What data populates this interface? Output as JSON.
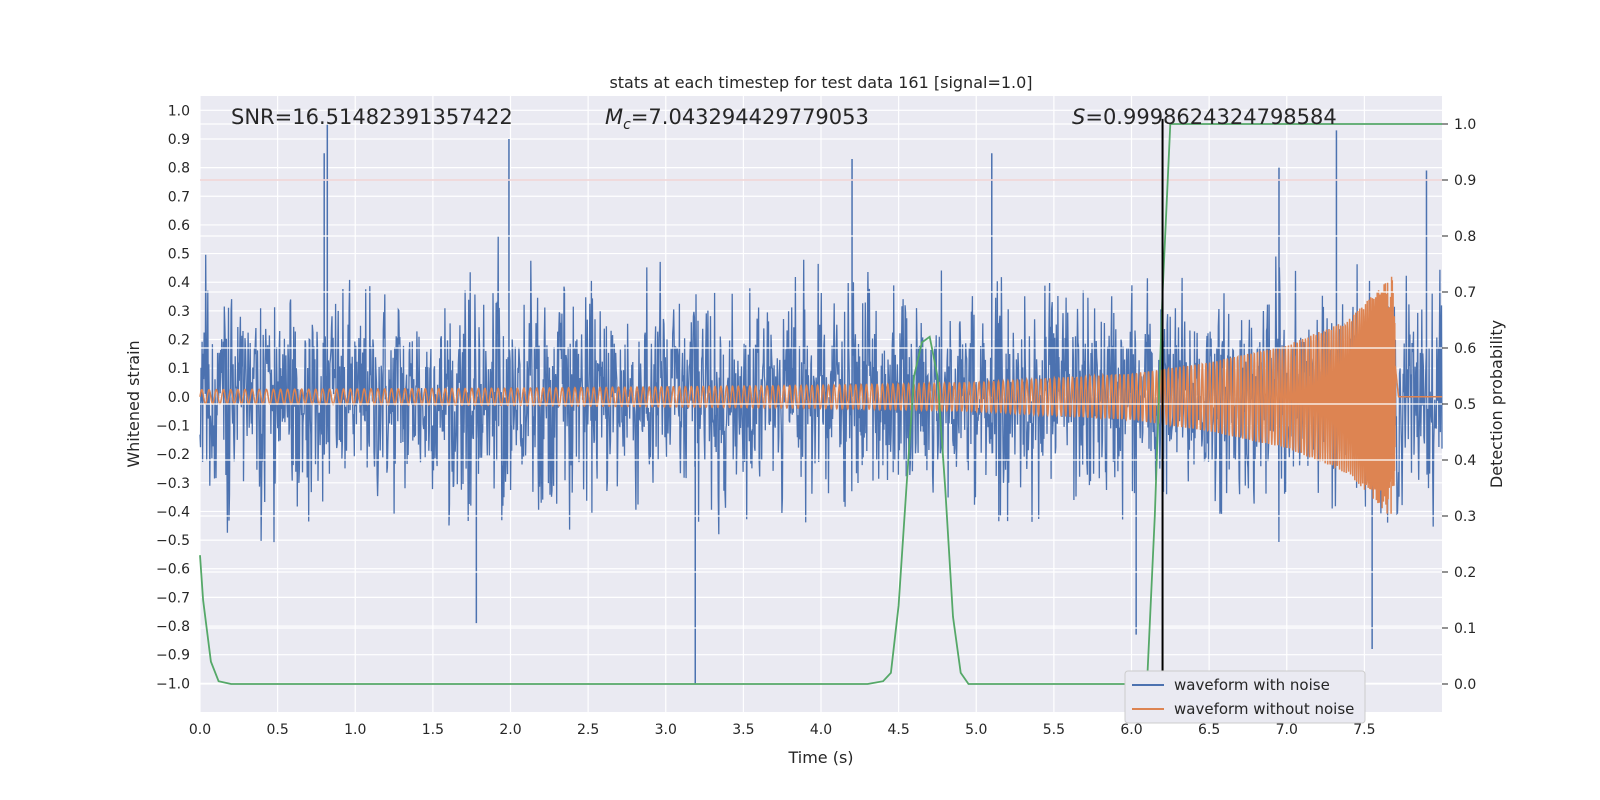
{
  "chart_data": {
    "type": "line",
    "title": "stats at each timestep for test data 161 [signal=1.0]",
    "xlabel": "Time (s)",
    "ylabel": "Whitened strain",
    "y2label": "Detection probability",
    "xlim": [
      0.0,
      8.0
    ],
    "ylim": [
      -1.1,
      1.05
    ],
    "y2lim": [
      -0.05,
      1.05
    ],
    "x_ticks": [
      0.0,
      0.5,
      1.0,
      1.5,
      2.0,
      2.5,
      3.0,
      3.5,
      4.0,
      4.5,
      5.0,
      5.5,
      6.0,
      6.5,
      7.0,
      7.5
    ],
    "x_tick_labels": [
      "0.0",
      "0.5",
      "1.0",
      "1.5",
      "2.0",
      "2.5",
      "3.0",
      "3.5",
      "4.0",
      "4.5",
      "5.0",
      "5.5",
      "6.0",
      "6.5",
      "7.0",
      "7.5"
    ],
    "y_ticks": [
      -1.0,
      -0.9,
      -0.8,
      -0.7,
      -0.6,
      -0.5,
      -0.4,
      -0.3,
      -0.2,
      -0.1,
      0.0,
      0.1,
      0.2,
      0.3,
      0.4,
      0.5,
      0.6,
      0.7,
      0.8,
      0.9,
      1.0
    ],
    "y_tick_labels": [
      "−1.0",
      "−0.9",
      "−0.8",
      "−0.7",
      "−0.6",
      "−0.5",
      "−0.4",
      "−0.3",
      "−0.2",
      "−0.1",
      "0.0",
      "0.1",
      "0.2",
      "0.3",
      "0.4",
      "0.5",
      "0.6",
      "0.7",
      "0.8",
      "0.9",
      "1.0"
    ],
    "y2_ticks": [
      0.0,
      0.1,
      0.2,
      0.3,
      0.4,
      0.5,
      0.6,
      0.7,
      0.8,
      0.9,
      1.0
    ],
    "y2_tick_labels": [
      "0.0",
      "0.1",
      "0.2",
      "0.3",
      "0.4",
      "0.5",
      "0.6",
      "0.7",
      "0.8",
      "0.9",
      "1.0"
    ],
    "annotations": {
      "snr": "SNR=16.51482391357422",
      "mc_symbol": "M",
      "mc_sub": "c",
      "mc_value": "=7.043294429779053",
      "s_symbol": "S",
      "s_value": "=0.9998624324798584"
    },
    "threshold": {
      "axis": "y2",
      "value": 0.9,
      "color": "#c44e52"
    },
    "detection_time": {
      "x": 6.2,
      "color": "#000000"
    },
    "series": [
      {
        "name": "waveform with noise",
        "color": "#4c72b0",
        "axis": "y",
        "kind": "noise",
        "typical_amplitude": [
          -0.45,
          0.5
        ],
        "peaks": [
          {
            "x": 0.82,
            "y": 0.95
          },
          {
            "x": 0.8,
            "y": 0.85
          },
          {
            "x": 1.99,
            "y": 0.9
          },
          {
            "x": 3.19,
            "y": -1.0
          },
          {
            "x": 5.1,
            "y": 0.85
          },
          {
            "x": 7.32,
            "y": 0.93
          },
          {
            "x": 1.78,
            "y": -0.79
          },
          {
            "x": 6.03,
            "y": -0.83
          },
          {
            "x": 7.55,
            "y": -0.88
          },
          {
            "x": 4.2,
            "y": 0.83
          },
          {
            "x": 6.95,
            "y": 0.8
          },
          {
            "x": 7.9,
            "y": 0.79
          }
        ]
      },
      {
        "name": "waveform without noise",
        "color": "#dd8452",
        "axis": "y",
        "kind": "chirp",
        "envelope": [
          {
            "t": 0.0,
            "a": 0.025
          },
          {
            "t": 2.0,
            "a": 0.03
          },
          {
            "t": 4.0,
            "a": 0.04
          },
          {
            "t": 5.0,
            "a": 0.05
          },
          {
            "t": 6.0,
            "a": 0.08
          },
          {
            "t": 6.5,
            "a": 0.12
          },
          {
            "t": 7.0,
            "a": 0.18
          },
          {
            "t": 7.4,
            "a": 0.27
          },
          {
            "t": 7.6,
            "a": 0.38
          },
          {
            "t": 7.68,
            "a": 0.43
          },
          {
            "t": 7.72,
            "a": 0.0
          },
          {
            "t": 8.0,
            "a": 0.0
          }
        ],
        "merger_time": 7.7
      },
      {
        "name": "detection probability",
        "color": "#55a868",
        "axis": "y2",
        "kind": "line",
        "x": [
          0.0,
          0.02,
          0.07,
          0.12,
          0.2,
          0.3,
          0.5,
          1.0,
          2.0,
          3.0,
          4.0,
          4.3,
          4.4,
          4.45,
          4.5,
          4.55,
          4.6,
          4.65,
          4.7,
          4.75,
          4.8,
          4.85,
          4.9,
          4.95,
          5.0,
          5.5,
          6.0,
          6.1,
          6.15,
          6.2,
          6.25,
          6.3,
          7.0,
          7.5,
          8.0
        ],
        "y": [
          0.23,
          0.15,
          0.04,
          0.005,
          0.0,
          0.0,
          0.0,
          0.0,
          0.0,
          0.0,
          0.0,
          0.0,
          0.005,
          0.02,
          0.14,
          0.35,
          0.55,
          0.61,
          0.62,
          0.55,
          0.35,
          0.12,
          0.02,
          0.0,
          0.0,
          0.0,
          0.0,
          0.0,
          0.3,
          0.7,
          1.0,
          1.0,
          1.0,
          1.0,
          1.0
        ]
      }
    ],
    "legend": {
      "placement": "lower-right",
      "entries": [
        {
          "label": "waveform with noise",
          "color": "#4c72b0"
        },
        {
          "label": "waveform without noise",
          "color": "#dd8452"
        }
      ]
    },
    "style": {
      "axes_bg": "#eaeaf2",
      "grid": "#ffffff"
    }
  }
}
